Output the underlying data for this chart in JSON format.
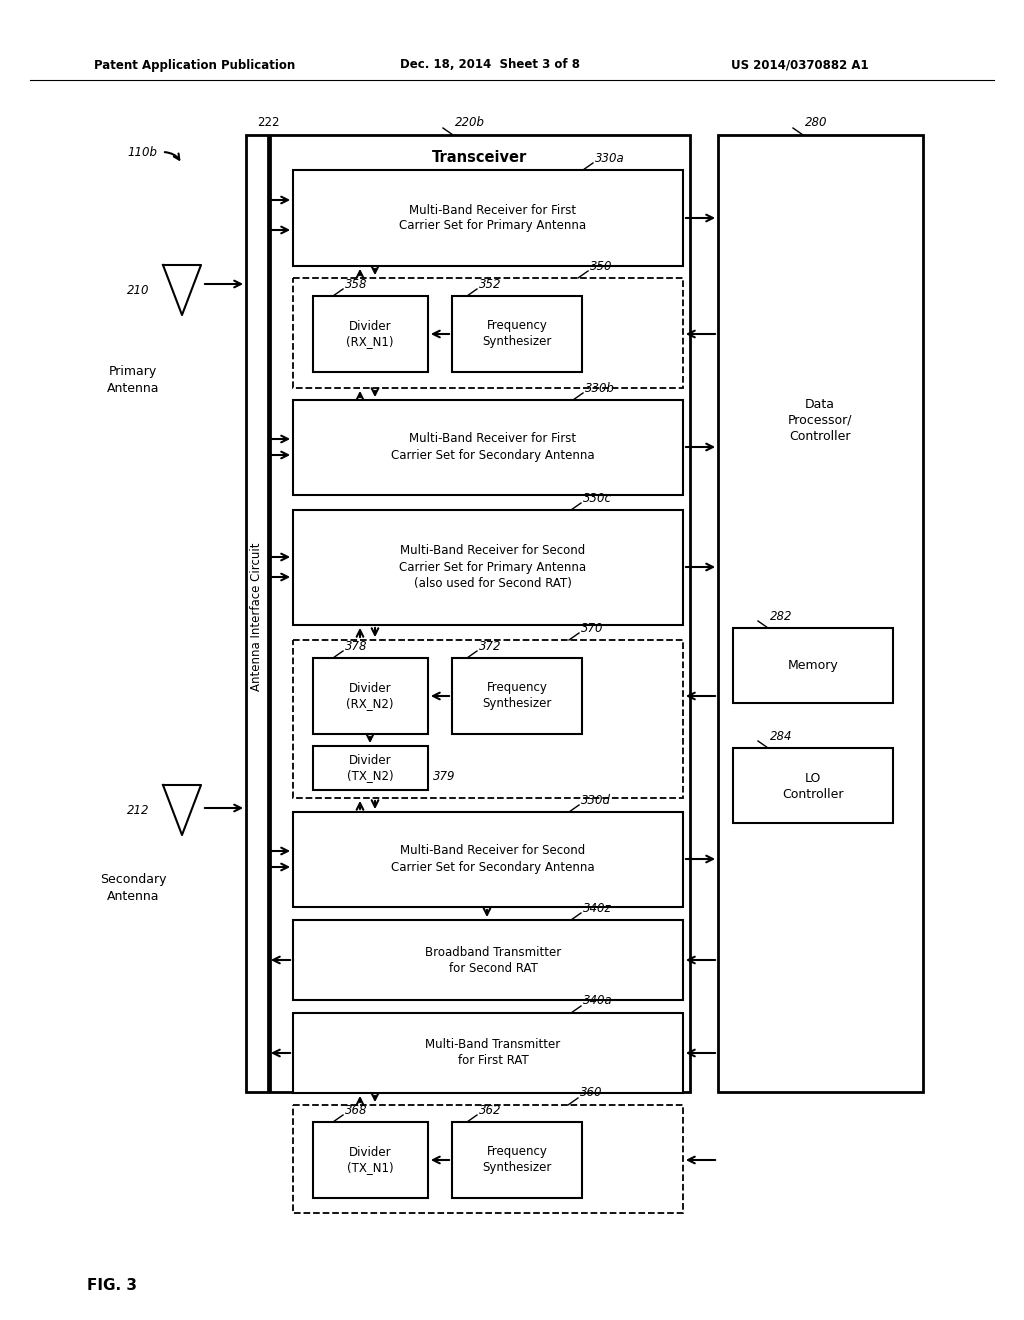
{
  "header_left": "Patent Application Publication",
  "header_center": "Dec. 18, 2014  Sheet 3 of 8",
  "header_right": "US 2014/0370882 A1",
  "fig_label": "FIG. 3",
  "bg": "#ffffff",
  "fg": "#000000"
}
